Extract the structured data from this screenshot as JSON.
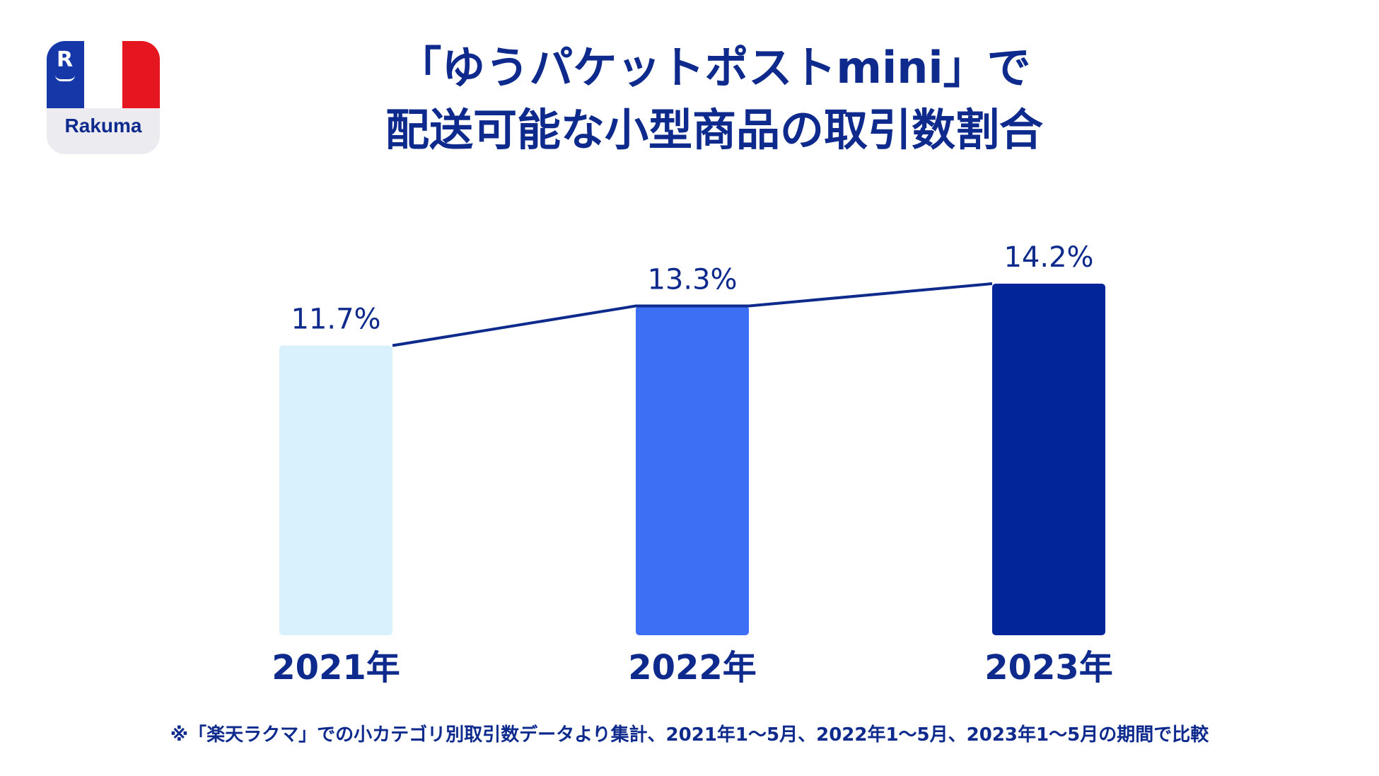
{
  "logo": {
    "brand": "Rakuma",
    "mark": "R"
  },
  "colors": {
    "text": "#0d2a8c",
    "line": "#0d2a8c",
    "bars": [
      "#d8f1fc",
      "#3d6ff5",
      "#03259a"
    ]
  },
  "chart_data": {
    "type": "bar",
    "title": "「ゆうパケットポストmini」で配送可能な小型商品の取引数割合",
    "title_lines": [
      "「ゆうパケットポストmini」で",
      "配送可能な小型商品の取引数割合"
    ],
    "categories": [
      "2021年",
      "2022年",
      "2023年"
    ],
    "values": [
      11.7,
      13.3,
      14.2
    ],
    "value_labels": [
      "11.7%",
      "13.3%",
      "14.2%"
    ],
    "unit": "%",
    "ylim": [
      0,
      16
    ],
    "grid": false,
    "legend": "none",
    "overlay": "line connecting bar tops",
    "xlabel": "",
    "ylabel": ""
  },
  "footnote": "※「楽天ラクマ」での小カテゴリ別取引数データより集計、2021年1〜5月、2022年1〜5月、2023年1〜5月の期間で比較"
}
